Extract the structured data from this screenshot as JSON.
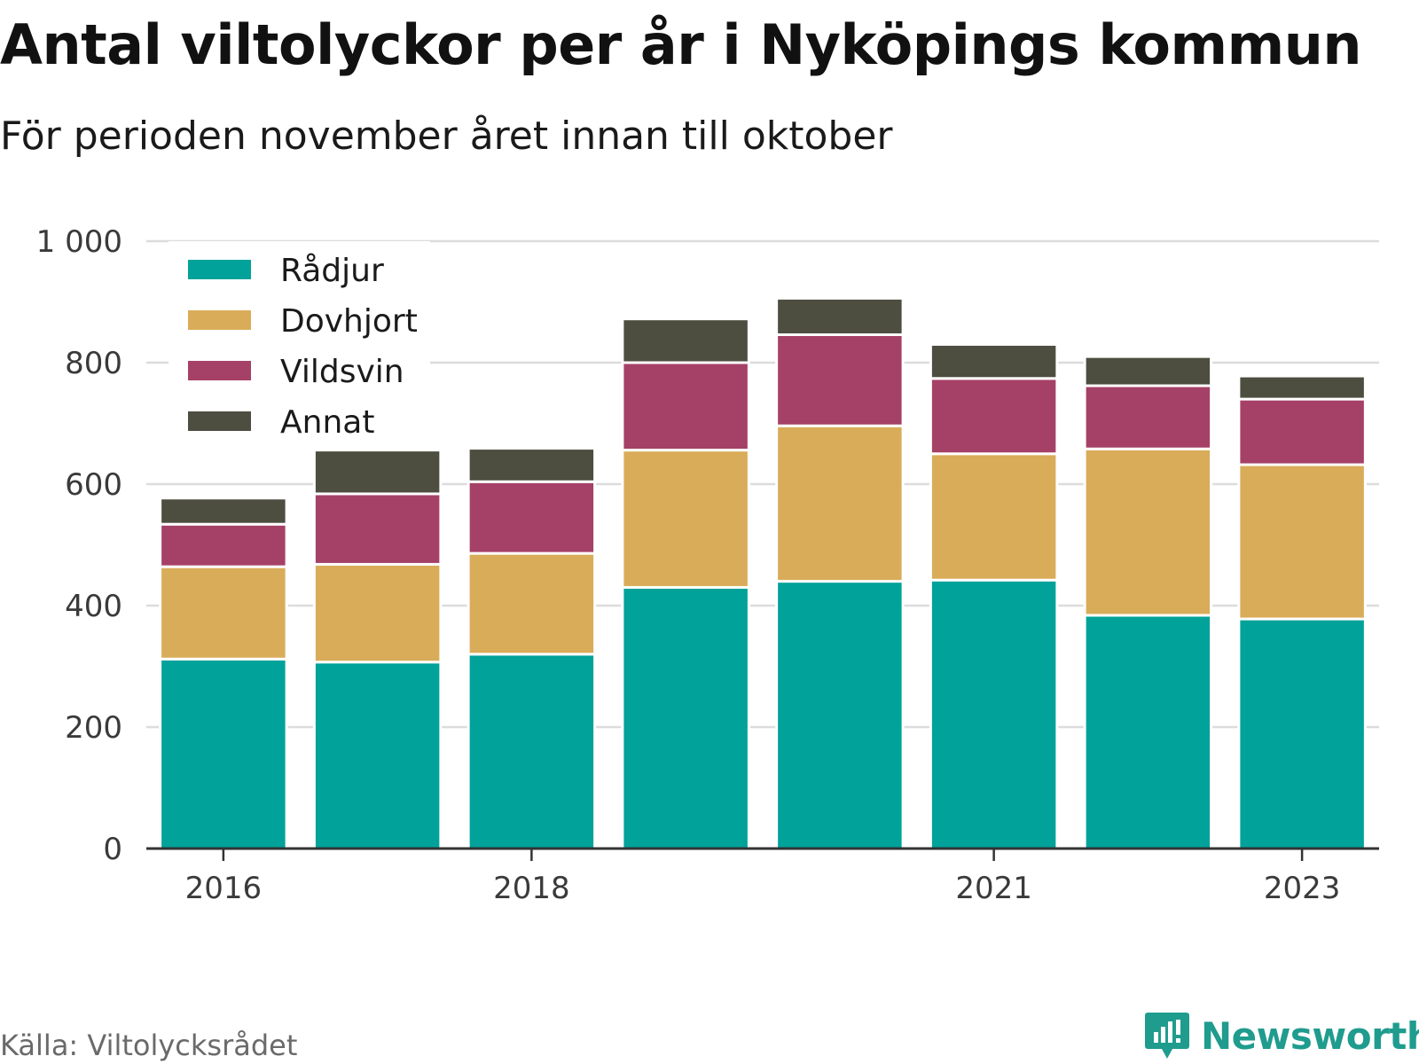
{
  "title": "Antal viltolyckor per år i Nyköpings kommun",
  "subtitle": "För perioden november året innan till oktober",
  "source": "Källa: Viltolycksrådet",
  "brand": "Newsworthy",
  "chart_data": {
    "type": "bar",
    "stacked": true,
    "categories": [
      "2016",
      "2017",
      "2018",
      "2019",
      "2020",
      "2021",
      "2022",
      "2023"
    ],
    "x_tick_labels": [
      "2016",
      "2018",
      "2021",
      "2023"
    ],
    "series": [
      {
        "name": "Rådjur",
        "color": "#00a29a",
        "values": [
          312,
          307,
          320,
          430,
          440,
          442,
          384,
          378
        ]
      },
      {
        "name": "Dovhjort",
        "color": "#d9ac5a",
        "values": [
          152,
          161,
          166,
          226,
          256,
          208,
          274,
          254
        ]
      },
      {
        "name": "Vildsvin",
        "color": "#a54166",
        "values": [
          70,
          116,
          118,
          144,
          150,
          124,
          104,
          108
        ]
      },
      {
        "name": "Annat",
        "color": "#4d4e40",
        "values": [
          43,
          72,
          55,
          72,
          60,
          56,
          48,
          38
        ]
      }
    ],
    "ylim": [
      0,
      1000
    ],
    "y_ticks": [
      0,
      200,
      400,
      600,
      800,
      1000
    ],
    "y_tick_labels": [
      "0",
      "200",
      "400",
      "600",
      "800",
      "1 000"
    ],
    "grid": true,
    "legend_position": "top-left",
    "xlabel": "",
    "ylabel": ""
  }
}
